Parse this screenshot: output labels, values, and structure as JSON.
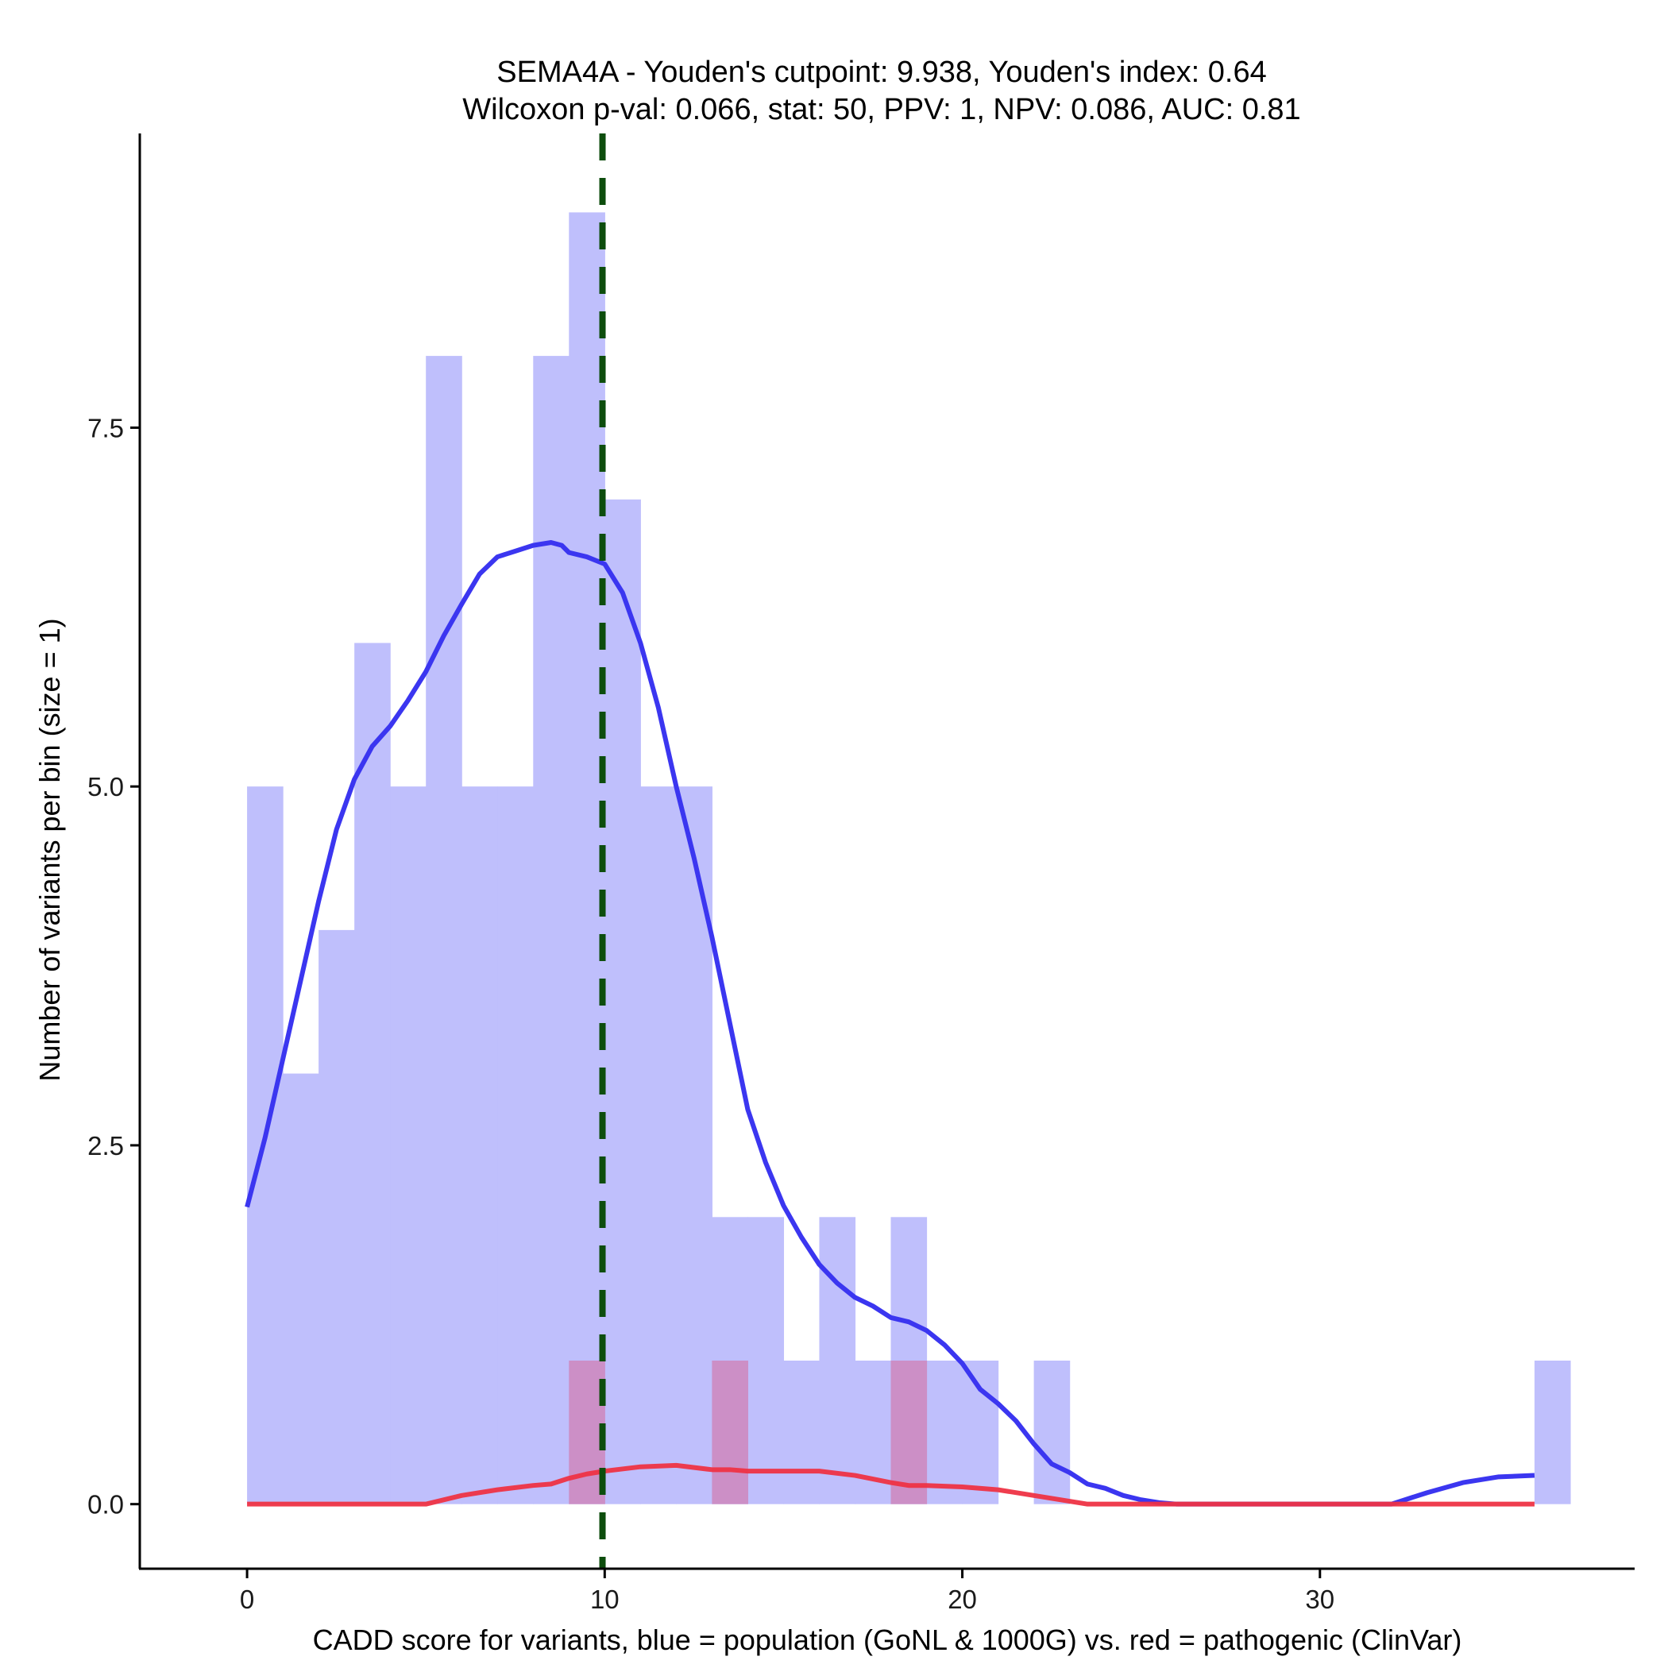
{
  "chart_data": {
    "type": "histogram",
    "title": "SEMA4A - Youden's cutpoint: 9.938, Youden's index: 0.64",
    "subtitle": "Wilcoxon p-val: 0.066, stat: 50, PPV: 1, NPV: 0.086, AUC: 0.81",
    "xlabel": "CADD score for variants, blue = population (GoNL & 1000G) vs. red = pathogenic (ClinVar)",
    "ylabel": "Number of variants per bin (size = 1)",
    "xlim": [
      -3,
      38.8
    ],
    "ylim": [
      -0.45,
      9.55
    ],
    "x_ticks": [
      0,
      10,
      20,
      30
    ],
    "x_tick_labels": [
      "0",
      "10",
      "20",
      "30"
    ],
    "y_ticks": [
      0,
      2.5,
      5,
      7.5
    ],
    "y_tick_labels": [
      "0.0",
      "2.5",
      "5.0",
      "7.5"
    ],
    "bin_width": 1,
    "cutpoint": 9.938,
    "series": [
      {
        "name": "population (GoNL & 1000G)",
        "color": "#bfbffc",
        "bins_start": [
          0,
          1,
          2,
          3,
          4,
          5,
          6,
          7,
          8,
          9,
          10,
          11,
          12,
          13,
          14,
          15,
          16,
          17,
          18,
          19,
          20,
          21,
          22,
          23,
          24,
          25,
          26,
          27,
          28,
          29,
          30,
          31,
          32,
          33,
          34,
          35,
          36
        ],
        "counts": [
          5,
          3,
          4,
          6,
          5,
          8,
          5,
          5,
          8,
          9,
          7,
          5,
          5,
          2,
          2,
          1,
          2,
          1,
          2,
          1,
          1,
          0,
          1,
          0,
          0,
          0,
          0,
          0,
          0,
          0,
          0,
          0,
          0,
          0,
          0,
          0,
          1
        ]
      },
      {
        "name": "pathogenic (ClinVar)",
        "color": "#cc8fc6",
        "bins_start": [
          9,
          13,
          18
        ],
        "counts": [
          1,
          1,
          1
        ]
      }
    ],
    "density_population": {
      "color": "#3b36f0",
      "x": [
        0,
        0.5,
        1,
        1.5,
        2,
        2.5,
        3,
        3.5,
        4,
        4.5,
        5,
        5.5,
        6,
        6.5,
        7,
        7.5,
        8,
        8.5,
        8.8,
        9,
        9.5,
        10,
        10.5,
        11,
        11.5,
        12,
        12.5,
        13,
        13.5,
        14,
        14.5,
        15,
        15.5,
        16,
        16.5,
        17,
        17.5,
        18,
        18.5,
        19,
        19.5,
        20,
        20.5,
        21,
        21.5,
        22,
        22.5,
        23,
        23.5,
        24,
        24.5,
        25,
        25.5,
        26,
        28,
        30,
        32,
        33,
        34,
        35,
        36
      ],
      "y": [
        2.07,
        2.55,
        3.1,
        3.65,
        4.2,
        4.7,
        5.05,
        5.28,
        5.42,
        5.6,
        5.8,
        6.05,
        6.27,
        6.48,
        6.6,
        6.64,
        6.68,
        6.7,
        6.68,
        6.63,
        6.6,
        6.55,
        6.35,
        6.0,
        5.55,
        5.0,
        4.5,
        3.95,
        3.35,
        2.75,
        2.38,
        2.08,
        1.86,
        1.67,
        1.54,
        1.44,
        1.38,
        1.3,
        1.27,
        1.21,
        1.11,
        0.98,
        0.8,
        0.7,
        0.58,
        0.42,
        0.28,
        0.22,
        0.14,
        0.11,
        0.06,
        0.03,
        0.01,
        0,
        0,
        0,
        0,
        0.08,
        0.15,
        0.19,
        0.2
      ]
    },
    "density_pathogenic": {
      "color": "#ee3344",
      "x": [
        0,
        2,
        4,
        5,
        6,
        7,
        8,
        8.5,
        9,
        9.5,
        10,
        11,
        12,
        13,
        13.5,
        14,
        15,
        16,
        17,
        18,
        18.5,
        19,
        20,
        21,
        22,
        23,
        23.5,
        24,
        26,
        30,
        34,
        36
      ],
      "y": [
        0,
        0,
        0,
        0,
        0.06,
        0.1,
        0.13,
        0.14,
        0.18,
        0.21,
        0.23,
        0.26,
        0.27,
        0.24,
        0.24,
        0.23,
        0.23,
        0.23,
        0.2,
        0.15,
        0.13,
        0.13,
        0.12,
        0.1,
        0.06,
        0.02,
        0,
        0,
        0,
        0,
        0,
        0
      ]
    }
  }
}
